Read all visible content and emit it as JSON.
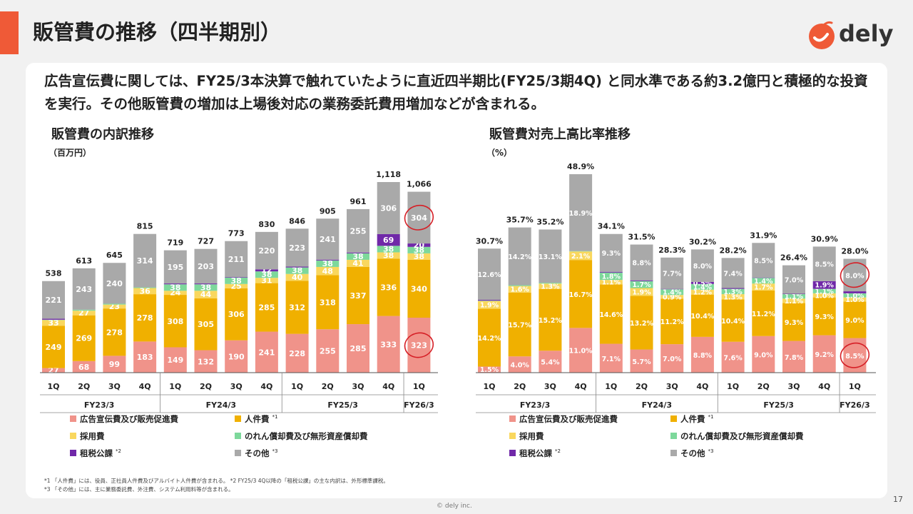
{
  "page": {
    "title": "販管費の推移（四半期別）",
    "logo_text": "dely",
    "lead": "広告宣伝費に関しては、FY25/3本決算で触れていたように直近四半期比(FY25/3期4Q) と同水準である約3.2億円と積極的な投資を実行。その他販管費の増加は上場後対応の業務委託費用増加などが含まれる。",
    "footnote1": "*1 「人件費」には、役員、正社員人件費及びアルバイト人件費が含まれる。 *2 FY25/3 4Q以降の「租税公課」の主な内訳は、外形標準課税。",
    "footnote2": "*3 「その他」には、主に業務委託費、外注費、システム利用料等が含まれる。",
    "page_number": "17",
    "copyright": "© dely inc.",
    "colors": {
      "accent": "#ef5a37",
      "ad": "#f0938a",
      "personnel": "#f0b000",
      "hiring": "#f9d75e",
      "amortization": "#7dd89b",
      "tax": "#7028a8",
      "other": "#a9a9a9",
      "highlight": "#d61f26"
    }
  },
  "chart_data": [
    {
      "type": "bar",
      "stacked": true,
      "title": "販管費の内訳推移",
      "unit": "（百万円）",
      "categories": [
        "1Q",
        "2Q",
        "3Q",
        "4Q",
        "1Q",
        "2Q",
        "3Q",
        "4Q",
        "1Q",
        "2Q",
        "3Q",
        "4Q",
        "1Q"
      ],
      "groups": [
        {
          "label": "FY23/3",
          "span": 4
        },
        {
          "label": "FY24/3",
          "span": 4
        },
        {
          "label": "FY25/3",
          "span": 4
        },
        {
          "label": "FY26/3",
          "span": 1
        }
      ],
      "series": [
        {
          "name": "広告宣伝費及び販売促進費",
          "values": [
            27,
            68,
            99,
            183,
            149,
            132,
            190,
            241,
            228,
            255,
            285,
            333,
            323
          ],
          "labels": [
            "27",
            "68",
            "99",
            "183",
            "149",
            "132",
            "190",
            "241",
            "228",
            "255",
            "285",
            "333",
            "323"
          ]
        },
        {
          "name": "人件費",
          "values": [
            249,
            269,
            278,
            278,
            308,
            305,
            306,
            285,
            312,
            318,
            337,
            336,
            340
          ],
          "labels": [
            "249",
            "269",
            "278",
            "278",
            "308",
            "305",
            "306",
            "285",
            "312",
            "318",
            "337",
            "336",
            "340"
          ]
        },
        {
          "name": "採用費",
          "values": [
            33,
            27,
            23,
            36,
            24,
            44,
            25,
            31,
            40,
            48,
            41,
            38,
            38
          ],
          "labels": [
            "33",
            "27",
            "23",
            "36",
            "24",
            "44",
            "25",
            "31",
            "40",
            "48",
            "41",
            "38",
            "38"
          ]
        },
        {
          "name": "のれん償却費及び無形資産償却費",
          "values": [
            2,
            6,
            5,
            4,
            38,
            38,
            38,
            38,
            38,
            38,
            38,
            38,
            38
          ],
          "labels": [
            "",
            "",
            "",
            "",
            "38",
            "38",
            "38",
            "38",
            "38",
            "38",
            "38",
            "38",
            "38"
          ]
        },
        {
          "name": "租税公課",
          "values": [
            6,
            0,
            0,
            0,
            5,
            5,
            3,
            12,
            5,
            5,
            5,
            69,
            20
          ],
          "labels": [
            "",
            "",
            "",
            "",
            "",
            "",
            "",
            "12",
            "",
            "",
            "",
            "69",
            "20"
          ]
        },
        {
          "name": "その他",
          "values": [
            221,
            243,
            240,
            314,
            195,
            203,
            211,
            220,
            223,
            241,
            255,
            306,
            304
          ],
          "labels": [
            "221",
            "243",
            "240",
            "314",
            "195",
            "203",
            "211",
            "220",
            "223",
            "241",
            "255",
            "306",
            "304"
          ]
        }
      ],
      "totals": [
        "538",
        "613",
        "645",
        "815",
        "719",
        "727",
        "773",
        "830",
        "846",
        "905",
        "961",
        "1,118",
        "1,066"
      ],
      "ylim": [
        0,
        1200
      ],
      "legend": [
        {
          "name": "広告宣伝費及び販売促進費",
          "note": ""
        },
        {
          "name": "人件費",
          "note": "*1"
        },
        {
          "name": "採用費",
          "note": ""
        },
        {
          "name": "のれん償却費及び無形資産償却費",
          "note": ""
        },
        {
          "name": "租税公課",
          "note": "*2"
        },
        {
          "name": "その他",
          "note": "*3"
        }
      ],
      "highlight": {
        "category_index": 12,
        "series": [
          "広告宣伝費及び販売促進費",
          "その他"
        ]
      }
    },
    {
      "type": "bar",
      "stacked": true,
      "title": "販管費対売上高比率推移",
      "unit": "（%）",
      "categories": [
        "1Q",
        "2Q",
        "3Q",
        "4Q",
        "1Q",
        "2Q",
        "3Q",
        "4Q",
        "1Q",
        "2Q",
        "3Q",
        "4Q",
        "1Q"
      ],
      "groups": [
        {
          "label": "FY23/3",
          "span": 4
        },
        {
          "label": "FY24/3",
          "span": 4
        },
        {
          "label": "FY25/3",
          "span": 4
        },
        {
          "label": "FY26/3",
          "span": 1
        }
      ],
      "series": [
        {
          "name": "広告宣伝費及び販売促進費",
          "values": [
            1.5,
            4.0,
            5.4,
            11.0,
            7.1,
            5.7,
            7.0,
            8.8,
            7.6,
            9.0,
            7.8,
            9.2,
            8.5
          ],
          "labels": [
            "1.5%",
            "4.0%",
            "5.4%",
            "11.0%",
            "7.1%",
            "5.7%",
            "7.0%",
            "8.8%",
            "7.6%",
            "9.0%",
            "7.8%",
            "9.2%",
            "8.5%"
          ]
        },
        {
          "name": "人件費",
          "values": [
            14.2,
            15.7,
            15.2,
            16.7,
            14.6,
            13.2,
            11.2,
            10.4,
            10.4,
            11.2,
            9.3,
            9.3,
            9.0
          ],
          "labels": [
            "14.2%",
            "15.7%",
            "15.2%",
            "16.7%",
            "14.6%",
            "13.2%",
            "11.2%",
            "10.4%",
            "10.4%",
            "11.2%",
            "9.3%",
            "9.3%",
            "9.0%"
          ]
        },
        {
          "name": "採用費",
          "values": [
            1.9,
            1.6,
            1.3,
            2.1,
            1.1,
            1.9,
            0.9,
            1.2,
            1.3,
            1.7,
            1.1,
            1.0,
            1.0
          ],
          "labels": [
            "1.9%",
            "1.6%",
            "1.3%",
            "2.1%",
            "1.1%",
            "1.9%",
            "0.9%",
            "1.2%",
            "1.3%",
            "1.7%",
            "1.1%",
            "1.0%",
            "1.0%"
          ]
        },
        {
          "name": "のれん償却費及び無形資産償却費",
          "values": [
            0.1,
            0.2,
            0.2,
            0.1,
            1.8,
            1.7,
            1.4,
            1.4,
            1.3,
            1.4,
            1.1,
            1.1,
            1.0
          ],
          "labels": [
            "",
            "",
            "",
            "",
            "1.8%",
            "1.7%",
            "1.4%",
            "1.4%",
            "1.3%",
            "1.4%",
            "1.1%",
            "1.1%",
            "1.0%"
          ]
        },
        {
          "name": "租税公課",
          "values": [
            0.2,
            0.0,
            0.0,
            0.0,
            0.2,
            0.2,
            0.1,
            0.5,
            0.2,
            0.1,
            0.1,
            1.9,
            0.5
          ],
          "labels": [
            "",
            "",
            "",
            "",
            "",
            "",
            "",
            "0.5%",
            "",
            "",
            "",
            "1.9%",
            ""
          ]
        },
        {
          "name": "その他",
          "values": [
            12.6,
            14.2,
            13.1,
            18.9,
            9.3,
            8.8,
            7.7,
            8.0,
            7.4,
            8.5,
            7.0,
            8.5,
            8.0
          ],
          "labels": [
            "12.6%",
            "14.2%",
            "13.1%",
            "18.9%",
            "9.3%",
            "8.8%",
            "7.7%",
            "8.0%",
            "7.4%",
            "8.5%",
            "7.0%",
            "8.5%",
            "8.0%"
          ]
        }
      ],
      "totals": [
        "30.7%",
        "35.7%",
        "35.2%",
        "48.9%",
        "34.1%",
        "31.5%",
        "28.3%",
        "30.2%",
        "28.2%",
        "31.9%",
        "26.4%",
        "30.9%",
        "28.0%"
      ],
      "ylim": [
        0,
        55
      ],
      "legend": [
        {
          "name": "広告宣伝費及び販売促進費",
          "note": ""
        },
        {
          "name": "人件費",
          "note": "*1"
        },
        {
          "name": "採用費",
          "note": ""
        },
        {
          "name": "のれん償却費及び無形資産償却費",
          "note": ""
        },
        {
          "name": "租税公課",
          "note": "*2"
        },
        {
          "name": "その他",
          "note": "*3"
        }
      ],
      "highlight": {
        "category_index": 12,
        "series": [
          "広告宣伝費及び販売促進費",
          "その他"
        ]
      }
    }
  ]
}
